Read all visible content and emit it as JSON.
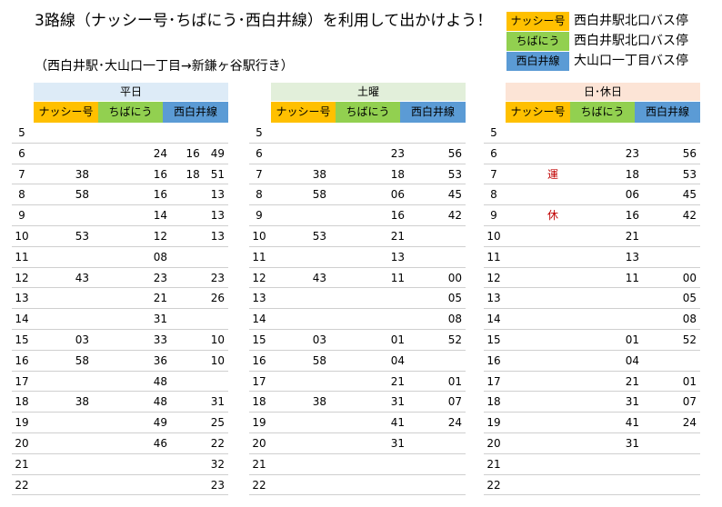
{
  "title": "3路線（ナッシー号･ちばにう･西白井線）を利用して出かけよう！",
  "subtitle": "（西白井駅･大山口一丁目→新鎌ヶ谷駅行き）",
  "legend": [
    {
      "route": "ナッシー号",
      "stop": "西白井駅北口バス停",
      "color": "#ffc000"
    },
    {
      "route": "ちばにう",
      "stop": "西白井駅北口バス停",
      "color": "#92d050"
    },
    {
      "route": "西白井線",
      "stop": "大山口一丁目バス停",
      "color": "#5b9bd5"
    }
  ],
  "columns": [
    "ナッシー号",
    "ちばにう",
    "西白井線"
  ],
  "sheets": [
    {
      "day": "平日",
      "day_color": "#ddebf7",
      "rows": [
        {
          "hour": "5",
          "a": "",
          "b": "",
          "c": ""
        },
        {
          "hour": "6",
          "a": "",
          "b": "24",
          "c": "16　49"
        },
        {
          "hour": "7",
          "a": "38",
          "b": "16",
          "c": "18　51"
        },
        {
          "hour": "8",
          "a": "58",
          "b": "16",
          "c": "13"
        },
        {
          "hour": "9",
          "a": "",
          "b": "14",
          "c": "13"
        },
        {
          "hour": "10",
          "a": "53",
          "b": "12",
          "c": "13"
        },
        {
          "hour": "11",
          "a": "",
          "b": "08",
          "c": ""
        },
        {
          "hour": "12",
          "a": "43",
          "b": "23",
          "c": "23"
        },
        {
          "hour": "13",
          "a": "",
          "b": "21",
          "c": "26"
        },
        {
          "hour": "14",
          "a": "",
          "b": "31",
          "c": ""
        },
        {
          "hour": "15",
          "a": "03",
          "b": "33",
          "c": "10"
        },
        {
          "hour": "16",
          "a": "58",
          "b": "36",
          "c": "10"
        },
        {
          "hour": "17",
          "a": "",
          "b": "48",
          "c": ""
        },
        {
          "hour": "18",
          "a": "38",
          "b": "48",
          "c": "31"
        },
        {
          "hour": "19",
          "a": "",
          "b": "49",
          "c": "25"
        },
        {
          "hour": "20",
          "a": "",
          "b": "46",
          "c": "22"
        },
        {
          "hour": "21",
          "a": "",
          "b": "",
          "c": "32"
        },
        {
          "hour": "22",
          "a": "",
          "b": "",
          "c": "23"
        }
      ]
    },
    {
      "day": "土曜",
      "day_color": "#e2efda",
      "rows": [
        {
          "hour": "5",
          "a": "",
          "b": "",
          "c": ""
        },
        {
          "hour": "6",
          "a": "",
          "b": "23",
          "c": "56"
        },
        {
          "hour": "7",
          "a": "38",
          "b": "18",
          "c": "53"
        },
        {
          "hour": "8",
          "a": "58",
          "b": "06",
          "c": "45"
        },
        {
          "hour": "9",
          "a": "",
          "b": "16",
          "c": "42"
        },
        {
          "hour": "10",
          "a": "53",
          "b": "21",
          "c": ""
        },
        {
          "hour": "11",
          "a": "",
          "b": "13",
          "c": ""
        },
        {
          "hour": "12",
          "a": "43",
          "b": "11",
          "c": "00"
        },
        {
          "hour": "13",
          "a": "",
          "b": "",
          "c": "05"
        },
        {
          "hour": "14",
          "a": "",
          "b": "",
          "c": "08"
        },
        {
          "hour": "15",
          "a": "03",
          "b": "01",
          "c": "52"
        },
        {
          "hour": "16",
          "a": "58",
          "b": "04",
          "c": ""
        },
        {
          "hour": "17",
          "a": "",
          "b": "21",
          "c": "01"
        },
        {
          "hour": "18",
          "a": "38",
          "b": "31",
          "c": "07"
        },
        {
          "hour": "19",
          "a": "",
          "b": "41",
          "c": "24"
        },
        {
          "hour": "20",
          "a": "",
          "b": "31",
          "c": ""
        },
        {
          "hour": "21",
          "a": "",
          "b": "",
          "c": ""
        },
        {
          "hour": "22",
          "a": "",
          "b": "",
          "c": ""
        }
      ]
    },
    {
      "day": "日･休日",
      "day_color": "#fce4d6",
      "rows": [
        {
          "hour": "5",
          "a": "",
          "b": "",
          "c": ""
        },
        {
          "hour": "6",
          "a": "",
          "b": "23",
          "c": "56"
        },
        {
          "hour": "7",
          "a": "運",
          "b": "18",
          "c": "53"
        },
        {
          "hour": "8",
          "a": "",
          "b": "06",
          "c": "45"
        },
        {
          "hour": "9",
          "a": "休",
          "b": "16",
          "c": "42"
        },
        {
          "hour": "10",
          "a": "",
          "b": "21",
          "c": ""
        },
        {
          "hour": "11",
          "a": "",
          "b": "13",
          "c": ""
        },
        {
          "hour": "12",
          "a": "",
          "b": "11",
          "c": "00"
        },
        {
          "hour": "13",
          "a": "",
          "b": "",
          "c": "05"
        },
        {
          "hour": "14",
          "a": "",
          "b": "",
          "c": "08"
        },
        {
          "hour": "15",
          "a": "",
          "b": "01",
          "c": "52"
        },
        {
          "hour": "16",
          "a": "",
          "b": "04",
          "c": ""
        },
        {
          "hour": "17",
          "a": "",
          "b": "21",
          "c": "01"
        },
        {
          "hour": "18",
          "a": "",
          "b": "31",
          "c": "07"
        },
        {
          "hour": "19",
          "a": "",
          "b": "41",
          "c": "24"
        },
        {
          "hour": "20",
          "a": "",
          "b": "31",
          "c": ""
        },
        {
          "hour": "21",
          "a": "",
          "b": "",
          "c": ""
        },
        {
          "hour": "22",
          "a": "",
          "b": "",
          "c": ""
        }
      ]
    }
  ]
}
